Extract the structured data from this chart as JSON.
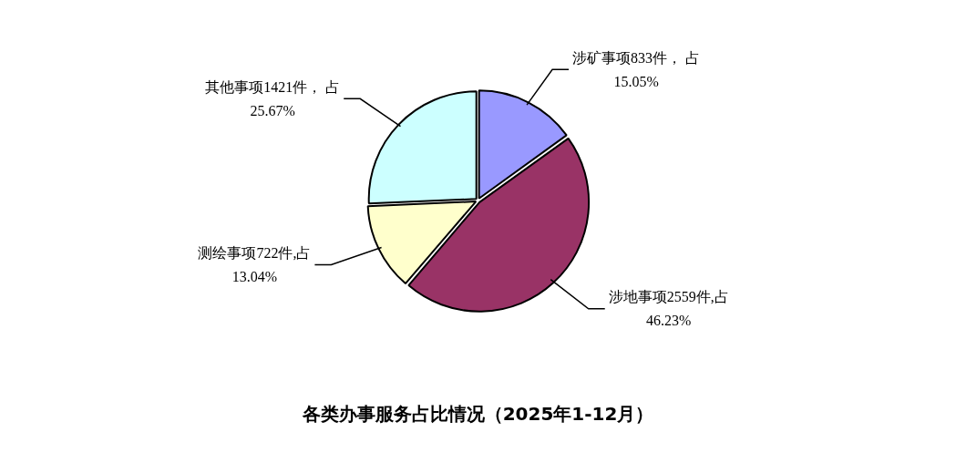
{
  "chart_data": {
    "type": "pie",
    "title": "各类办事服务占比情况（2025年1-12月）",
    "categories": [
      "涉矿事项833件， 占\n15.05%",
      "涉地事项2559件,占\n46.23%",
      "测绘事项722件,占\n13.04%",
      "其他事项1421件， 占\n25.67%"
    ],
    "values": [
      833,
      2559,
      722,
      1421
    ],
    "colors": [
      "#9999ff",
      "#993366",
      "#ffffcc",
      "#ccffff"
    ],
    "legend": false
  }
}
